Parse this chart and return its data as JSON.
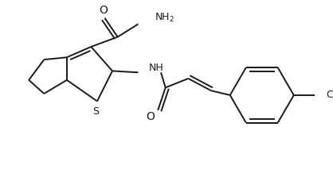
{
  "background_color": "#ffffff",
  "line_color": "#1a1a1a",
  "line_width": 1.4,
  "figsize": [
    4.18,
    2.18
  ],
  "dpi": 100,
  "xlim": [
    0,
    418
  ],
  "ylim": [
    0,
    218
  ]
}
